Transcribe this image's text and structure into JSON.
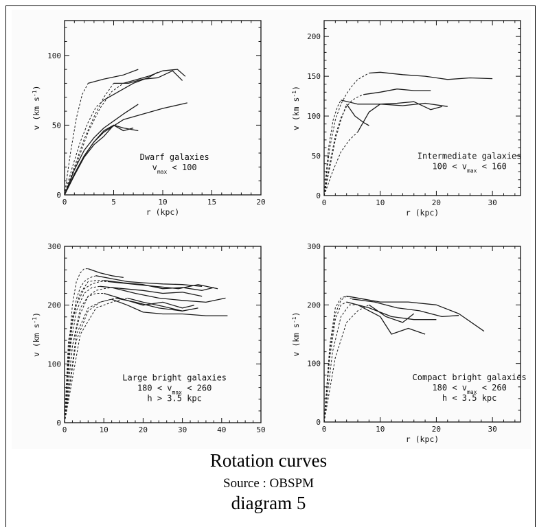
{
  "chart_data": [
    {
      "type": "line",
      "title": "",
      "xlabel": "r (kpc)",
      "ylabel": "v (km s",
      "ylabel_sup": "-1",
      "ylabel_close": ")",
      "xlim": [
        0,
        20
      ],
      "ylim": [
        0,
        125
      ],
      "xticks": [
        0,
        5,
        10,
        15,
        20
      ],
      "yticks": [
        0,
        50,
        100
      ],
      "note_lines": [
        {
          "text": "Dwarf galaxies"
        },
        {
          "text": "v",
          "sub": "max",
          "rest": " < 100"
        }
      ],
      "series": [
        {
          "x": [
            0,
            0.6,
            1.2,
            1.8,
            2.4
          ],
          "y": [
            0,
            30,
            55,
            72,
            80
          ],
          "dash": true
        },
        {
          "x": [
            2.4,
            4,
            6,
            7.5
          ],
          "y": [
            80,
            83,
            86,
            90
          ],
          "dash": false
        },
        {
          "x": [
            0,
            1,
            2,
            3,
            4,
            5
          ],
          "y": [
            0,
            20,
            40,
            56,
            70,
            80
          ],
          "dash": true
        },
        {
          "x": [
            5,
            6.5,
            8,
            9.5,
            11,
            12
          ],
          "y": [
            80,
            80,
            83,
            84,
            89,
            82
          ],
          "dash": false
        },
        {
          "x": [
            0,
            1.2,
            2.4,
            3.6,
            4.8,
            6
          ],
          "y": [
            0,
            22,
            45,
            62,
            74,
            80
          ],
          "dash": true
        },
        {
          "x": [
            6,
            7,
            8.5,
            10,
            11.5,
            12.3
          ],
          "y": [
            80,
            82,
            85,
            89,
            90,
            85
          ],
          "dash": false
        },
        {
          "x": [
            0,
            0.8,
            1.6,
            2.4,
            3.2,
            4
          ],
          "y": [
            0,
            20,
            38,
            52,
            63,
            68
          ],
          "dash": true
        },
        {
          "x": [
            4,
            5.5,
            7,
            8.5,
            9.5
          ],
          "y": [
            68,
            74,
            80,
            84,
            88
          ],
          "dash": false
        },
        {
          "x": [
            0,
            1,
            2,
            3,
            4,
            5,
            6,
            7.5
          ],
          "y": [
            0,
            18,
            32,
            41,
            48,
            53,
            58,
            65
          ],
          "dash": false
        },
        {
          "x": [
            0,
            1,
            2,
            3,
            4,
            5,
            6,
            7
          ],
          "y": [
            0,
            15,
            28,
            38,
            46,
            50,
            46,
            48
          ],
          "dash": false
        },
        {
          "x": [
            0,
            1,
            2,
            3,
            4,
            5,
            6,
            7.5
          ],
          "y": [
            0,
            14,
            27,
            36,
            42,
            50,
            48,
            46
          ],
          "dash": false
        },
        {
          "x": [
            0,
            1,
            2,
            3,
            4,
            6,
            8,
            10,
            12.5
          ],
          "y": [
            0,
            15,
            28,
            38,
            45,
            54,
            58,
            62,
            66
          ],
          "dash": false
        }
      ]
    },
    {
      "type": "line",
      "title": "",
      "xlabel": "r (kpc)",
      "ylabel": "v (km s",
      "ylabel_sup": "-1",
      "ylabel_close": ")",
      "xlim": [
        0,
        35
      ],
      "ylim": [
        0,
        220
      ],
      "xticks": [
        0,
        10,
        20,
        30
      ],
      "yticks": [
        0,
        50,
        100,
        150,
        200
      ],
      "note_lines": [
        {
          "text": "Intermediate galaxies"
        },
        {
          "text": "100 < v",
          "sub": "max",
          "rest": " < 160"
        }
      ],
      "series": [
        {
          "x": [
            0,
            1,
            2,
            3,
            4,
            5,
            6,
            7,
            8
          ],
          "y": [
            0,
            60,
            95,
            115,
            128,
            138,
            146,
            150,
            154
          ],
          "dash": true
        },
        {
          "x": [
            8,
            10,
            14,
            18,
            22,
            26,
            30
          ],
          "y": [
            154,
            155,
            152,
            150,
            146,
            148,
            147
          ],
          "dash": false
        },
        {
          "x": [
            0,
            1,
            2,
            3,
            4,
            5,
            6,
            7
          ],
          "y": [
            0,
            40,
            75,
            98,
            112,
            120,
            124,
            127
          ],
          "dash": true
        },
        {
          "x": [
            7,
            10,
            13,
            16,
            19
          ],
          "y": [
            127,
            130,
            134,
            132,
            132
          ],
          "dash": false
        },
        {
          "x": [
            0,
            0.8,
            1.6,
            2.4,
            3
          ],
          "y": [
            0,
            60,
            95,
            112,
            120
          ],
          "dash": true
        },
        {
          "x": [
            3,
            6,
            10,
            14,
            18,
            22
          ],
          "y": [
            120,
            115,
            115,
            113,
            116,
            112
          ],
          "dash": false
        },
        {
          "x": [
            0,
            1,
            2,
            3,
            4
          ],
          "y": [
            0,
            35,
            70,
            95,
            115
          ],
          "dash": true
        },
        {
          "x": [
            4,
            5.5,
            7,
            8
          ],
          "y": [
            115,
            100,
            92,
            88
          ],
          "dash": false
        },
        {
          "x": [
            0,
            1.5,
            3,
            4.5,
            6
          ],
          "y": [
            0,
            30,
            55,
            70,
            80
          ],
          "dash": true
        },
        {
          "x": [
            6,
            8,
            10,
            13,
            16,
            19,
            21
          ],
          "y": [
            80,
            105,
            115,
            116,
            118,
            108,
            112
          ],
          "dash": false
        }
      ]
    },
    {
      "type": "line",
      "title": "",
      "xlabel": "",
      "ylabel": "v (km s",
      "ylabel_sup": "-1",
      "ylabel_close": ")",
      "xlim": [
        0,
        50
      ],
      "ylim": [
        0,
        300
      ],
      "xticks": [
        0,
        10,
        20,
        30,
        40,
        50
      ],
      "yticks": [
        0,
        100,
        200,
        300
      ],
      "note_lines": [
        {
          "text": "Large bright galaxies"
        },
        {
          "text": "180 < v",
          "sub": "max",
          "rest": " < 260"
        },
        {
          "text": "h > 3.5 kpc"
        }
      ],
      "series": [
        {
          "x": [
            0,
            1,
            2,
            3,
            4,
            5,
            6
          ],
          "y": [
            0,
            120,
            200,
            240,
            255,
            262,
            262
          ],
          "dash": true
        },
        {
          "x": [
            6,
            9,
            12,
            15
          ],
          "y": [
            262,
            255,
            250,
            247
          ],
          "dash": false
        },
        {
          "x": [
            0,
            1,
            2,
            3,
            4,
            5,
            6,
            7,
            8
          ],
          "y": [
            0,
            100,
            170,
            210,
            230,
            240,
            245,
            248,
            250
          ],
          "dash": true
        },
        {
          "x": [
            8,
            12,
            16,
            20,
            25,
            30,
            35
          ],
          "y": [
            250,
            245,
            240,
            238,
            236,
            235,
            232
          ],
          "dash": false
        },
        {
          "x": [
            0,
            1,
            2,
            4,
            6,
            8,
            10
          ],
          "y": [
            0,
            110,
            180,
            220,
            240,
            242,
            242
          ],
          "dash": true
        },
        {
          "x": [
            10,
            15,
            20,
            25,
            30,
            35,
            38
          ],
          "y": [
            242,
            238,
            235,
            228,
            230,
            225,
            230
          ],
          "dash": false
        },
        {
          "x": [
            0,
            1,
            3,
            5,
            7,
            9,
            11
          ],
          "y": [
            0,
            140,
            200,
            228,
            236,
            240,
            240
          ],
          "dash": true
        },
        {
          "x": [
            11,
            17,
            23,
            29,
            34,
            39
          ],
          "y": [
            240,
            236,
            232,
            228,
            235,
            228
          ],
          "dash": false
        },
        {
          "x": [
            0,
            1.5,
            3,
            5,
            7,
            9
          ],
          "y": [
            0,
            130,
            190,
            220,
            230,
            232
          ],
          "dash": true
        },
        {
          "x": [
            9,
            15,
            20,
            25,
            30,
            35
          ],
          "y": [
            232,
            228,
            225,
            220,
            222,
            215
          ],
          "dash": false
        },
        {
          "x": [
            0,
            2,
            4,
            6,
            8,
            10,
            12
          ],
          "y": [
            0,
            130,
            185,
            215,
            225,
            228,
            230
          ],
          "dash": true
        },
        {
          "x": [
            12,
            18,
            24,
            30,
            36,
            41
          ],
          "y": [
            230,
            220,
            212,
            208,
            205,
            212
          ],
          "dash": false
        },
        {
          "x": [
            0,
            2,
            4,
            6,
            8,
            10
          ],
          "y": [
            0,
            130,
            195,
            215,
            220,
            220
          ],
          "dash": true
        },
        {
          "x": [
            10,
            15,
            20,
            25,
            30,
            33
          ],
          "y": [
            220,
            210,
            200,
            205,
            195,
            200
          ],
          "dash": false
        },
        {
          "x": [
            0,
            3,
            6,
            9,
            12
          ],
          "y": [
            0,
            140,
            190,
            205,
            210
          ],
          "dash": true
        },
        {
          "x": [
            12,
            16,
            20,
            25,
            30,
            36,
            41.5
          ],
          "y": [
            210,
            200,
            188,
            185,
            185,
            182,
            182
          ],
          "dash": false
        },
        {
          "x": [
            0,
            3,
            6,
            9,
            13
          ],
          "y": [
            0,
            150,
            195,
            205,
            212
          ],
          "dash": true
        },
        {
          "x": [
            13,
            18,
            24,
            30
          ],
          "y": [
            212,
            205,
            195,
            190
          ],
          "dash": false
        },
        {
          "x": [
            0,
            4,
            8,
            12,
            16
          ],
          "y": [
            0,
            150,
            195,
            205,
            212
          ],
          "dash": true
        },
        {
          "x": [
            16,
            20,
            25,
            30,
            34
          ],
          "y": [
            212,
            205,
            198,
            190,
            195
          ],
          "dash": false
        }
      ]
    },
    {
      "type": "line",
      "title": "",
      "xlabel": "r (kpc)",
      "ylabel": "v (km s",
      "ylabel_sup": "-1",
      "ylabel_close": ")",
      "xlim": [
        0,
        35
      ],
      "ylim": [
        0,
        300
      ],
      "xticks": [
        0,
        10,
        20,
        30
      ],
      "yticks": [
        0,
        100,
        200,
        300
      ],
      "note_lines": [
        {
          "text": "Compact bright galaxies"
        },
        {
          "text": "180 < v",
          "sub": "max",
          "rest": " < 260"
        },
        {
          "text": "h < 3.5 kpc"
        }
      ],
      "series": [
        {
          "x": [
            0,
            1,
            2,
            3,
            4
          ],
          "y": [
            0,
            120,
            185,
            208,
            215
          ],
          "dash": true
        },
        {
          "x": [
            4,
            7,
            10,
            15,
            20,
            24,
            28.5
          ],
          "y": [
            215,
            210,
            205,
            205,
            200,
            185,
            155
          ],
          "dash": false
        },
        {
          "x": [
            0,
            1,
            2,
            3,
            4,
            5
          ],
          "y": [
            0,
            130,
            195,
            212,
            215,
            210
          ],
          "dash": true
        },
        {
          "x": [
            5,
            9,
            13,
            17,
            21,
            24
          ],
          "y": [
            210,
            205,
            195,
            190,
            180,
            182
          ],
          "dash": false
        },
        {
          "x": [
            0,
            1,
            2,
            3,
            4
          ],
          "y": [
            0,
            110,
            175,
            200,
            205
          ],
          "dash": true
        },
        {
          "x": [
            4,
            8,
            12,
            16,
            20
          ],
          "y": [
            205,
            195,
            180,
            175,
            175
          ],
          "dash": false
        },
        {
          "x": [
            0,
            1.5,
            3,
            4.5,
            6
          ],
          "y": [
            0,
            120,
            180,
            200,
            200
          ],
          "dash": true
        },
        {
          "x": [
            6,
            8,
            10,
            12,
            15,
            18
          ],
          "y": [
            200,
            190,
            180,
            150,
            160,
            150
          ],
          "dash": false
        },
        {
          "x": [
            0,
            2,
            4,
            6,
            8
          ],
          "y": [
            0,
            110,
            170,
            190,
            200
          ],
          "dash": true
        },
        {
          "x": [
            8,
            11,
            14,
            16
          ],
          "y": [
            200,
            180,
            170,
            185
          ],
          "dash": false
        }
      ]
    }
  ],
  "caption": {
    "title": "Rotation curves",
    "source": "Source : OBSPM",
    "diagram": "diagram 5"
  }
}
